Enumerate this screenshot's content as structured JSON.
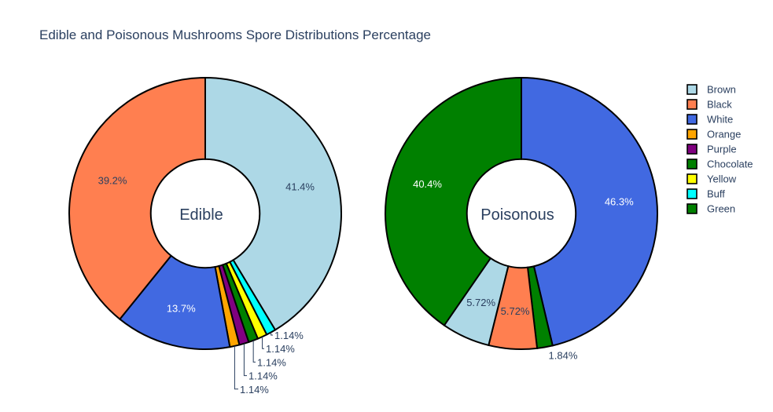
{
  "chart_data": {
    "type": "pie",
    "title": "Edible and Poisonous Mushrooms Spore Distributions Percentage",
    "legend_position": "right",
    "hole": 0.4,
    "legend": [
      {
        "name": "Brown",
        "color": "#add8e6"
      },
      {
        "name": "Black",
        "color": "#ff7f50"
      },
      {
        "name": "White",
        "color": "#4169e1"
      },
      {
        "name": "Orange",
        "color": "#ffa500"
      },
      {
        "name": "Purple",
        "color": "#800080"
      },
      {
        "name": "Chocolate",
        "color": "#008000"
      },
      {
        "name": "Yellow",
        "color": "#ffff00"
      },
      {
        "name": "Buff",
        "color": "#00ffff"
      },
      {
        "name": "Green",
        "color": "#008000"
      }
    ],
    "pies": [
      {
        "name": "Edible",
        "slices": [
          {
            "label": "Brown",
            "value": 41.4,
            "text": "41.4%"
          },
          {
            "label": "Buff",
            "value": 1.14,
            "text": "1.14%"
          },
          {
            "label": "Yellow",
            "value": 1.14,
            "text": "1.14%"
          },
          {
            "label": "Chocolate",
            "value": 1.14,
            "text": "1.14%"
          },
          {
            "label": "Purple",
            "value": 1.14,
            "text": "1.14%"
          },
          {
            "label": "Orange",
            "value": 1.14,
            "text": "1.14%"
          },
          {
            "label": "White",
            "value": 13.7,
            "text": "13.7%"
          },
          {
            "label": "Black",
            "value": 39.2,
            "text": "39.2%"
          }
        ]
      },
      {
        "name": "Poisonous",
        "slices": [
          {
            "label": "White",
            "value": 46.3,
            "text": "46.3%"
          },
          {
            "label": "Green",
            "value": 1.84,
            "text": "1.84%"
          },
          {
            "label": "Black",
            "value": 5.72,
            "text": "5.72%"
          },
          {
            "label": "Brown",
            "value": 5.72,
            "text": "5.72%"
          },
          {
            "label": "Chocolate",
            "value": 40.4,
            "text": "40.4%"
          }
        ]
      }
    ]
  }
}
